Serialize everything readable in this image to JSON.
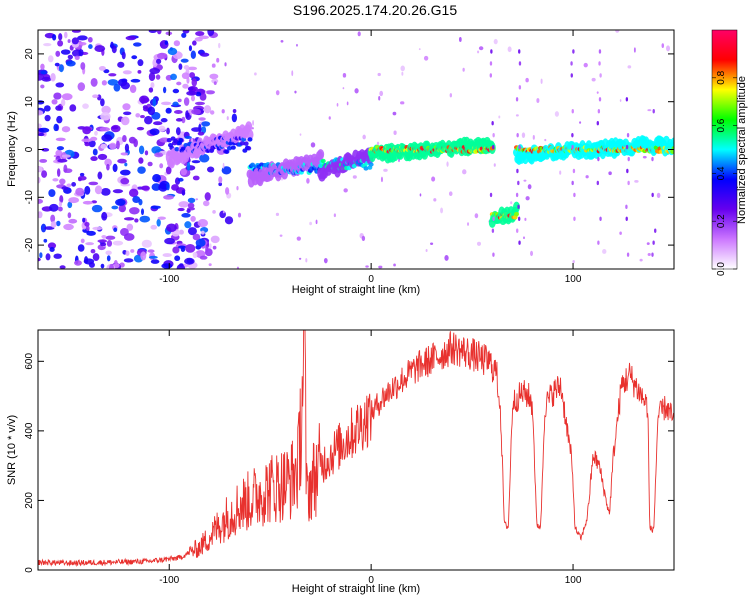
{
  "title": "S196.2025.174.20.26.G15",
  "chart_data": [
    {
      "type": "heatmap",
      "name": "spectrogram",
      "xlabel": "Height of straight line (km)",
      "ylabel": "Frequency (Hz)",
      "xlim": [
        -165,
        150
      ],
      "ylim": [
        -25,
        25
      ],
      "x_ticks": [
        -100,
        0,
        100
      ],
      "x_tick_labels": [
        "-100",
        "0",
        "100"
      ],
      "y_ticks": [
        -20,
        -10,
        0,
        10,
        20
      ],
      "y_tick_labels": [
        "-20",
        "-10",
        "0",
        "10",
        "20"
      ],
      "colorbar": {
        "label": "Normalized spectral amplitude",
        "range": [
          0,
          1
        ],
        "ticks": [
          0.0,
          0.2,
          0.4,
          0.6,
          0.8
        ],
        "tick_labels": [
          "0.0",
          "0.2",
          "0.4",
          "0.6",
          "0.8"
        ],
        "stops": [
          "#ffffff",
          "#cc77ff",
          "#6600ee",
          "#0000ff",
          "#00ffff",
          "#00ff00",
          "#ffff00",
          "#ff0000",
          "#ff0066"
        ]
      },
      "features": [
        {
          "desc": "noise region",
          "x": [
            -165,
            -85
          ],
          "freq": [
            -25,
            25
          ],
          "amp": 0.35
        },
        {
          "desc": "signal start",
          "x": [
            -100,
            -60
          ],
          "freq": [
            -2,
            4
          ],
          "amp": 0.4
        },
        {
          "desc": "rising track",
          "x": [
            -60,
            -25
          ],
          "freq": [
            -6,
            -2
          ],
          "amp": 0.5
        },
        {
          "desc": "track to zero",
          "x": [
            -25,
            0
          ],
          "freq": [
            -5,
            -1
          ],
          "amp": 0.55
        },
        {
          "desc": "main band",
          "x": [
            0,
            60
          ],
          "freq": [
            -1,
            1
          ],
          "amp": 0.9
        },
        {
          "desc": "shifted band",
          "x": [
            60,
            72
          ],
          "freq": [
            -15,
            -13
          ],
          "amp": 0.9
        },
        {
          "desc": "return band",
          "x": [
            72,
            150
          ],
          "freq": [
            -1,
            1
          ],
          "amp": 0.85
        }
      ]
    },
    {
      "type": "line",
      "name": "snr",
      "xlabel": "Height of straight line (km)",
      "ylabel": "SNR (10 * v/v)",
      "xlim": [
        -165,
        150
      ],
      "ylim": [
        0,
        690
      ],
      "x_ticks": [
        -100,
        0,
        100
      ],
      "x_tick_labels": [
        "-100",
        "0",
        "100"
      ],
      "y_ticks": [
        0,
        200,
        400,
        600
      ],
      "y_tick_labels": [
        "0",
        "200",
        "400",
        "600"
      ],
      "color": "#e8312e",
      "points": [
        [
          -165,
          22
        ],
        [
          -150,
          20
        ],
        [
          -130,
          22
        ],
        [
          -110,
          25
        ],
        [
          -95,
          35
        ],
        [
          -90,
          50
        ],
        [
          -85,
          65
        ],
        [
          -80,
          95
        ],
        [
          -75,
          130
        ],
        [
          -70,
          160
        ],
        [
          -65,
          185
        ],
        [
          -60,
          200
        ],
        [
          -55,
          220
        ],
        [
          -50,
          235
        ],
        [
          -45,
          245
        ],
        [
          -40,
          255
        ],
        [
          -36,
          300
        ],
        [
          -33,
          650
        ],
        [
          -32,
          220
        ],
        [
          -28,
          270
        ],
        [
          -25,
          300
        ],
        [
          -20,
          330
        ],
        [
          -15,
          360
        ],
        [
          -10,
          390
        ],
        [
          -5,
          420
        ],
        [
          0,
          450
        ],
        [
          5,
          490
        ],
        [
          10,
          520
        ],
        [
          15,
          545
        ],
        [
          20,
          570
        ],
        [
          25,
          590
        ],
        [
          30,
          605
        ],
        [
          35,
          620
        ],
        [
          40,
          640
        ],
        [
          45,
          630
        ],
        [
          50,
          620
        ],
        [
          55,
          605
        ],
        [
          58,
          600
        ],
        [
          62,
          570
        ],
        [
          64,
          470
        ],
        [
          66,
          130
        ],
        [
          68,
          125
        ],
        [
          70,
          480
        ],
        [
          75,
          510
        ],
        [
          78,
          500
        ],
        [
          80,
          470
        ],
        [
          82,
          130
        ],
        [
          84,
          125
        ],
        [
          86,
          470
        ],
        [
          90,
          510
        ],
        [
          94,
          530
        ],
        [
          96,
          450
        ],
        [
          99,
          330
        ],
        [
          100,
          250
        ],
        [
          101,
          120
        ],
        [
          104,
          90
        ],
        [
          107,
          150
        ],
        [
          110,
          330
        ],
        [
          113,
          300
        ],
        [
          116,
          210
        ],
        [
          118,
          160
        ],
        [
          120,
          330
        ],
        [
          124,
          530
        ],
        [
          128,
          560
        ],
        [
          131,
          530
        ],
        [
          134,
          500
        ],
        [
          137,
          470
        ],
        [
          138,
          120
        ],
        [
          140,
          115
        ],
        [
          142,
          440
        ],
        [
          146,
          470
        ],
        [
          150,
          430
        ]
      ]
    }
  ]
}
